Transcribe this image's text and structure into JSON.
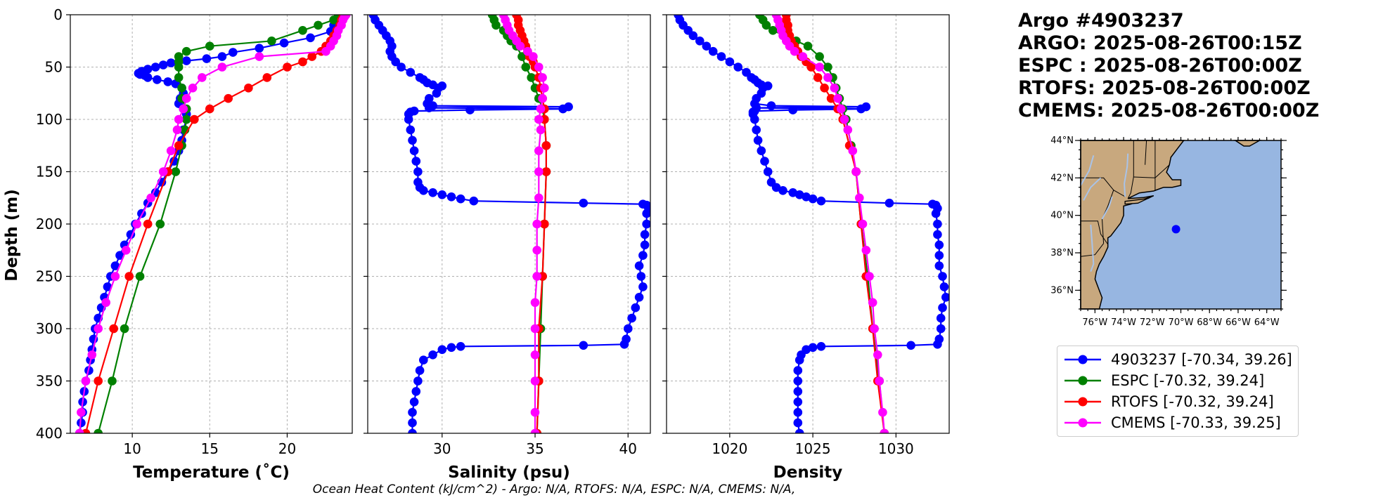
{
  "figure": {
    "title_lines": [
      "Argo #4903237",
      "ARGO: 2025-08-26T00:15Z",
      "ESPC : 2025-08-26T00:00Z",
      "RTOFS: 2025-08-26T00:00Z",
      "CMEMS: 2025-08-26T00:00Z"
    ],
    "footer": "Ocean Heat Content (kJ/cm^2) - Argo: N/A,  RTOFS: N/A,  ESPC: N/A,  CMEMS: N/A,"
  },
  "legend": [
    {
      "label": "4903237 [-70.34, 39.26]",
      "color": "#0000ff"
    },
    {
      "label": "ESPC [-70.32, 39.24]",
      "color": "#008000"
    },
    {
      "label": "RTOFS [-70.32, 39.24]",
      "color": "#ff0000"
    },
    {
      "label": "CMEMS [-70.33, 39.25]",
      "color": "#ff00ff"
    }
  ],
  "map": {
    "lat_labels": [
      "44°N",
      "42°N",
      "40°N",
      "38°N",
      "36°N"
    ],
    "lat_values": [
      44,
      42,
      40,
      38,
      36
    ],
    "lon_labels": [
      "76°W",
      "74°W",
      "72°W",
      "70°W",
      "68°W",
      "66°W",
      "64°W"
    ],
    "lon_values": [
      -76,
      -74,
      -72,
      -70,
      -68,
      -66,
      -64
    ],
    "lon_range": [
      -77,
      -63
    ],
    "lat_range": [
      35,
      44
    ],
    "land_color": "#c8a87e",
    "ocean_color": "#97b6e1",
    "float_position": [
      -70.34,
      39.26
    ],
    "marker_color": "#0000ff"
  },
  "chart_data": [
    {
      "type": "line",
      "xlabel": "Temperature (˚C)",
      "ylabel": "Depth (m)",
      "xlim": [
        6,
        24.2
      ],
      "ylim": [
        400,
        0
      ],
      "xticks": [
        10,
        15,
        20
      ],
      "yticks": [
        0,
        50,
        100,
        150,
        200,
        250,
        300,
        350,
        400
      ],
      "grid": true,
      "series": [
        {
          "name": "4903237",
          "color": "#0000ff",
          "depth": [
            2,
            6,
            10,
            16,
            22,
            27,
            32,
            36,
            40,
            42,
            44,
            46,
            48,
            50,
            52,
            54,
            56,
            57,
            58,
            60,
            62,
            64,
            66,
            70,
            75,
            80,
            85,
            90,
            95,
            100,
            110,
            120,
            130,
            140,
            150,
            160,
            170,
            180,
            190,
            200,
            210,
            220,
            230,
            240,
            250,
            260,
            270,
            280,
            290,
            300,
            310,
            320,
            330,
            340,
            350,
            360,
            370,
            380,
            390,
            400
          ],
          "values": [
            23.4,
            23.3,
            23.0,
            22.8,
            21.5,
            19.8,
            18.2,
            16.5,
            15.8,
            14.8,
            13.5,
            12.5,
            12.0,
            11.5,
            11.0,
            10.6,
            10.4,
            10.5,
            10.8,
            11.0,
            11.6,
            12.3,
            12.8,
            13.2,
            13.3,
            13.1,
            13.0,
            13.3,
            13.5,
            13.5,
            13.3,
            13.2,
            13.0,
            12.7,
            12.3,
            11.9,
            11.5,
            11.0,
            10.6,
            10.2,
            9.9,
            9.5,
            9.2,
            8.9,
            8.6,
            8.4,
            8.2,
            8.0,
            7.8,
            7.6,
            7.5,
            7.4,
            7.3,
            7.2,
            7.0,
            6.9,
            6.8,
            6.8,
            6.7,
            6.6
          ]
        },
        {
          "name": "ESPC",
          "color": "#008000",
          "depth": [
            0,
            5,
            10,
            15,
            25,
            30,
            35,
            40,
            45,
            50,
            60,
            70,
            80,
            90,
            100,
            110,
            125,
            150,
            200,
            250,
            300,
            350,
            400
          ],
          "values": [
            23.3,
            23.0,
            22.0,
            21.0,
            19.0,
            15.0,
            13.5,
            13.0,
            13.0,
            13.0,
            13.0,
            13.2,
            13.2,
            13.5,
            13.5,
            13.4,
            13.2,
            12.8,
            11.8,
            10.5,
            9.5,
            8.7,
            7.8
          ]
        },
        {
          "name": "RTOFS",
          "color": "#ff0000",
          "depth": [
            0,
            2,
            5,
            10,
            15,
            20,
            25,
            30,
            35,
            40,
            45,
            50,
            60,
            70,
            80,
            90,
            100,
            125,
            150,
            200,
            250,
            300,
            350,
            400
          ],
          "values": [
            23.6,
            23.6,
            23.5,
            23.4,
            23.2,
            23.0,
            22.8,
            22.5,
            22.2,
            21.6,
            21.0,
            20.0,
            18.7,
            17.5,
            16.2,
            15.0,
            14.0,
            13.0,
            12.3,
            11.0,
            9.8,
            8.8,
            7.8,
            7.0
          ]
        },
        {
          "name": "CMEMS",
          "color": "#ff00ff",
          "depth": [
            0,
            2,
            5,
            10,
            15,
            20,
            25,
            30,
            35,
            40,
            50,
            60,
            70,
            80,
            90,
            100,
            110,
            130,
            150,
            175,
            200,
            225,
            250,
            275,
            300,
            325,
            350,
            380,
            400
          ],
          "values": [
            23.8,
            23.7,
            23.6,
            23.5,
            23.3,
            23.2,
            23.0,
            22.8,
            22.5,
            18.2,
            15.8,
            14.5,
            13.9,
            13.5,
            13.3,
            13.0,
            12.9,
            12.5,
            12.0,
            11.2,
            10.3,
            9.6,
            8.9,
            8.3,
            7.8,
            7.4,
            7.0,
            6.7,
            6.6
          ]
        }
      ]
    },
    {
      "type": "line",
      "xlabel": "Salinity (psu)",
      "ylabel": "Depth (m)",
      "xlim": [
        26,
        41.2
      ],
      "ylim": [
        400,
        0
      ],
      "xticks": [
        30,
        35,
        40
      ],
      "yticks": [
        0,
        50,
        100,
        150,
        200,
        250,
        300,
        350,
        400
      ],
      "grid": true,
      "series": [
        {
          "name": "4903237",
          "color": "#0000ff",
          "depth": [
            0,
            5,
            10,
            15,
            20,
            25,
            30,
            35,
            40,
            45,
            50,
            55,
            60,
            62,
            65,
            67,
            68,
            70,
            75,
            80,
            85,
            87,
            88,
            89,
            90,
            91,
            92,
            93,
            95,
            100,
            110,
            120,
            130,
            140,
            150,
            160,
            165,
            168,
            170,
            172,
            174,
            176,
            178,
            180,
            181,
            182,
            185,
            190,
            200,
            210,
            220,
            230,
            240,
            250,
            260,
            270,
            280,
            290,
            300,
            310,
            315,
            316,
            317,
            318,
            320,
            325,
            330,
            340,
            350,
            360,
            370,
            380,
            390,
            400
          ],
          "values": [
            26.3,
            26.4,
            26.6,
            26.8,
            27.0,
            27.2,
            27.3,
            27.2,
            27.3,
            27.5,
            27.8,
            28.3,
            28.8,
            29.0,
            29.2,
            29.5,
            30.0,
            29.8,
            29.7,
            29.3,
            29.2,
            29.5,
            36.8,
            29.3,
            36.5,
            31.5,
            28.5,
            28.3,
            28.2,
            28.2,
            28.3,
            28.4,
            28.5,
            28.6,
            28.7,
            28.7,
            28.8,
            29.0,
            29.5,
            30.0,
            30.5,
            31.0,
            31.7,
            37.6,
            40.8,
            41.0,
            41.1,
            41.0,
            41.0,
            40.9,
            40.9,
            40.8,
            40.6,
            40.7,
            40.8,
            40.6,
            40.4,
            40.2,
            40.0,
            39.9,
            39.8,
            37.6,
            31.0,
            30.5,
            30.0,
            29.5,
            29.0,
            28.8,
            28.7,
            28.6,
            28.5,
            28.4,
            28.4,
            28.4
          ]
        },
        {
          "name": "ESPC",
          "color": "#008000",
          "depth": [
            0,
            5,
            10,
            15,
            20,
            25,
            30,
            40,
            50,
            60,
            70,
            80,
            90,
            100,
            125,
            150,
            200,
            250,
            300,
            350,
            400
          ],
          "values": [
            32.7,
            32.8,
            32.9,
            33.3,
            33.5,
            33.7,
            34.0,
            34.3,
            34.5,
            34.8,
            35.0,
            35.2,
            35.4,
            35.5,
            35.6,
            35.6,
            35.5,
            35.4,
            35.3,
            35.2,
            35.1
          ]
        },
        {
          "name": "RTOFS",
          "color": "#ff0000",
          "depth": [
            0,
            5,
            10,
            15,
            20,
            25,
            30,
            35,
            40,
            45,
            50,
            60,
            70,
            80,
            90,
            100,
            125,
            150,
            200,
            250,
            300,
            350,
            400
          ],
          "values": [
            34.0,
            34.1,
            34.1,
            34.2,
            34.3,
            34.4,
            34.5,
            34.6,
            34.7,
            34.9,
            35.0,
            35.2,
            35.3,
            35.4,
            35.5,
            35.5,
            35.6,
            35.6,
            35.5,
            35.4,
            35.2,
            35.2,
            35.1
          ]
        },
        {
          "name": "CMEMS",
          "color": "#ff00ff",
          "depth": [
            0,
            5,
            10,
            15,
            20,
            25,
            30,
            35,
            40,
            50,
            60,
            70,
            80,
            90,
            100,
            110,
            130,
            150,
            175,
            200,
            225,
            250,
            275,
            300,
            325,
            350,
            380,
            400
          ],
          "values": [
            33.3,
            33.4,
            33.5,
            33.6,
            33.8,
            34.0,
            34.2,
            34.6,
            34.9,
            35.2,
            35.4,
            35.5,
            35.4,
            35.3,
            35.2,
            35.3,
            35.2,
            35.2,
            35.2,
            35.1,
            35.1,
            35.1,
            35.0,
            35.0,
            35.0,
            35.0,
            35.0,
            35.0
          ]
        }
      ]
    },
    {
      "type": "line",
      "xlabel": "Density",
      "ylabel": "Depth (m)",
      "xlim": [
        1016.2,
        1033.2
      ],
      "ylim": [
        400,
        0
      ],
      "xticks": [
        1020,
        1025,
        1030
      ],
      "yticks": [
        0,
        50,
        100,
        150,
        200,
        250,
        300,
        350,
        400
      ],
      "grid": true,
      "series": [
        {
          "name": "4903237",
          "color": "#0000ff",
          "depth": [
            0,
            5,
            10,
            15,
            20,
            25,
            30,
            35,
            40,
            45,
            50,
            55,
            60,
            62,
            65,
            67,
            68,
            70,
            75,
            80,
            85,
            87,
            88,
            89,
            90,
            91,
            92,
            93,
            95,
            100,
            110,
            120,
            130,
            140,
            150,
            160,
            165,
            168,
            170,
            172,
            174,
            176,
            178,
            180,
            181,
            182,
            185,
            190,
            200,
            210,
            220,
            230,
            240,
            250,
            260,
            270,
            280,
            290,
            300,
            310,
            315,
            316,
            317,
            318,
            320,
            325,
            330,
            340,
            350,
            360,
            370,
            380,
            390,
            400
          ],
          "values": [
            1016.9,
            1017.0,
            1017.2,
            1017.5,
            1017.8,
            1018.2,
            1018.6,
            1019.0,
            1019.5,
            1020.0,
            1020.5,
            1021.0,
            1021.3,
            1021.5,
            1021.7,
            1021.9,
            1022.3,
            1022.0,
            1021.9,
            1021.6,
            1021.5,
            1022.5,
            1028.2,
            1021.6,
            1027.9,
            1023.8,
            1021.5,
            1021.4,
            1021.4,
            1021.5,
            1021.6,
            1021.7,
            1021.9,
            1022.1,
            1022.3,
            1022.5,
            1022.8,
            1023.2,
            1023.8,
            1024.2,
            1024.6,
            1025.0,
            1025.5,
            1029.6,
            1032.2,
            1032.4,
            1032.5,
            1032.4,
            1032.5,
            1032.5,
            1032.6,
            1032.6,
            1032.6,
            1032.8,
            1032.9,
            1033.0,
            1032.8,
            1032.7,
            1032.7,
            1032.6,
            1032.5,
            1030.9,
            1025.5,
            1025.0,
            1024.6,
            1024.3,
            1024.2,
            1024.1,
            1024.1,
            1024.1,
            1024.1,
            1024.1,
            1024.1,
            1024.2
          ]
        },
        {
          "name": "ESPC",
          "color": "#008000",
          "depth": [
            0,
            5,
            10,
            15,
            20,
            25,
            30,
            40,
            50,
            60,
            70,
            80,
            90,
            100,
            125,
            150,
            200,
            250,
            300,
            350,
            400
          ],
          "values": [
            1021.8,
            1022.0,
            1022.2,
            1022.6,
            1023.3,
            1024.0,
            1024.7,
            1025.4,
            1025.9,
            1026.2,
            1026.4,
            1026.6,
            1026.8,
            1027.0,
            1027.3,
            1027.6,
            1027.9,
            1028.3,
            1028.6,
            1029.0,
            1029.3
          ]
        },
        {
          "name": "RTOFS",
          "color": "#ff0000",
          "depth": [
            0,
            5,
            10,
            15,
            20,
            25,
            30,
            35,
            40,
            45,
            50,
            60,
            70,
            80,
            90,
            100,
            125,
            150,
            200,
            250,
            300,
            350,
            400
          ],
          "values": [
            1023.4,
            1023.4,
            1023.5,
            1023.5,
            1023.6,
            1023.7,
            1023.9,
            1024.1,
            1024.3,
            1024.6,
            1024.9,
            1025.3,
            1025.7,
            1026.1,
            1026.5,
            1026.8,
            1027.2,
            1027.6,
            1027.9,
            1028.2,
            1028.6,
            1028.9,
            1029.3
          ]
        },
        {
          "name": "CMEMS",
          "color": "#ff00ff",
          "depth": [
            0,
            5,
            10,
            15,
            20,
            25,
            30,
            35,
            40,
            50,
            60,
            70,
            80,
            90,
            100,
            110,
            130,
            150,
            175,
            200,
            225,
            250,
            275,
            300,
            325,
            350,
            380,
            400
          ],
          "values": [
            1022.8,
            1022.9,
            1023.0,
            1023.1,
            1023.2,
            1023.4,
            1023.6,
            1023.9,
            1024.4,
            1025.4,
            1025.9,
            1026.3,
            1026.5,
            1026.7,
            1026.9,
            1027.1,
            1027.4,
            1027.6,
            1027.8,
            1028.0,
            1028.2,
            1028.4,
            1028.6,
            1028.7,
            1028.9,
            1029.0,
            1029.2,
            1029.3
          ]
        }
      ]
    }
  ]
}
